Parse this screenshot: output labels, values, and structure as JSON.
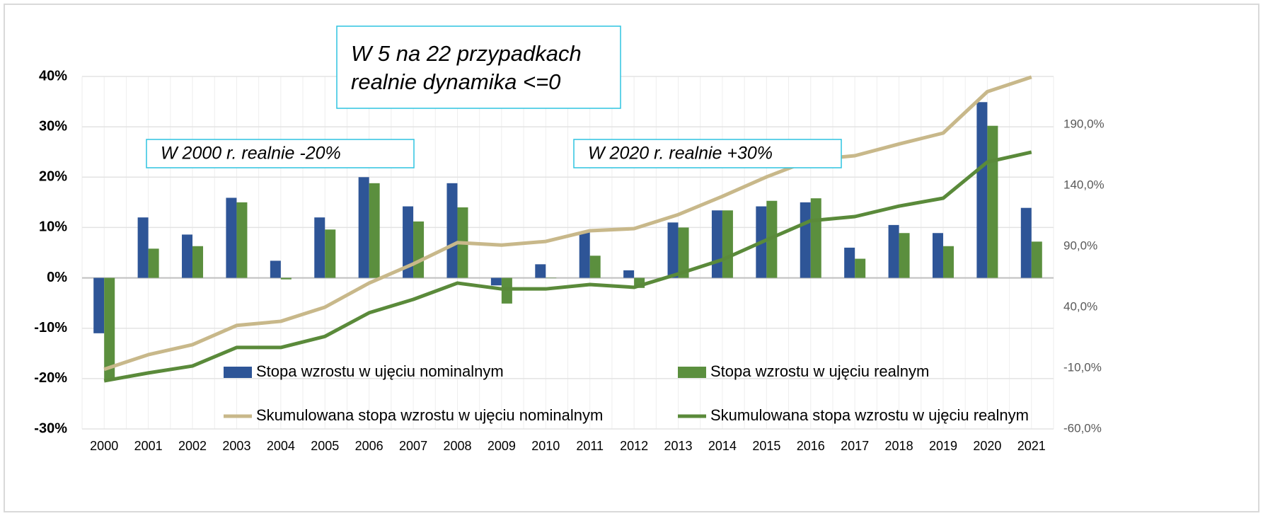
{
  "chart_data": {
    "type": "combo",
    "categories": [
      "2000",
      "2001",
      "2002",
      "2003",
      "2004",
      "2005",
      "2006",
      "2007",
      "2008",
      "2009",
      "2010",
      "2011",
      "2012",
      "2013",
      "2014",
      "2015",
      "2016",
      "2017",
      "2018",
      "2019",
      "2020",
      "2021"
    ],
    "series": [
      {
        "name": "Stopa wzrostu w ujęciu nominalnym",
        "type": "bar",
        "color": "#2e5597",
        "values": [
          -11,
          12,
          8.6,
          15.9,
          3.4,
          12,
          20,
          14.2,
          18.8,
          -1.5,
          2.7,
          9,
          1.5,
          11,
          13.4,
          14.2,
          15,
          6,
          10.5,
          8.9,
          34.9,
          13.9
        ]
      },
      {
        "name": "Stopa wzrostu w ujęciu realnym",
        "type": "bar",
        "color": "#5b8f3e",
        "values": [
          -20.4,
          5.8,
          6.3,
          15,
          -0.3,
          9.6,
          18.8,
          11.2,
          14,
          -5.1,
          0,
          4.4,
          -2,
          10,
          13.4,
          15.3,
          15.8,
          3.8,
          8.9,
          6.3,
          30.2,
          7.2
        ]
      },
      {
        "name": "Skumulowana stopa wzrostu w ujęciu nominalnym",
        "type": "line",
        "axis": "y2",
        "color": "#c8b88a",
        "values": [
          -11,
          1,
          9.2,
          25,
          28.4,
          40,
          59.8,
          75.5,
          93,
          91,
          94,
          102.8,
          104.5,
          116,
          131,
          147,
          161,
          164.4,
          174,
          183,
          217,
          229
        ]
      },
      {
        "name": "Skumulowana stopa wzrostu w ujęciu realnym",
        "type": "line",
        "axis": "y2",
        "color": "#5a8a3a",
        "values": [
          -20.5,
          -14,
          -8.3,
          6.9,
          6.9,
          16,
          35.4,
          46.4,
          59.8,
          55,
          55,
          58.6,
          56.3,
          67.3,
          79,
          95.2,
          111,
          114.4,
          123,
          129.5,
          159.2,
          167.3
        ]
      }
    ],
    "ylim": [
      -30,
      40
    ],
    "yticks": [
      {
        "value": -30,
        "label": "-30%"
      },
      {
        "value": -20,
        "label": "-20%"
      },
      {
        "value": -10,
        "label": "-10%"
      },
      {
        "value": 0,
        "label": "0%"
      },
      {
        "value": 10,
        "label": "10%"
      },
      {
        "value": 20,
        "label": "20%"
      },
      {
        "value": 30,
        "label": "30%"
      },
      {
        "value": 40,
        "label": "40%"
      }
    ],
    "y2lim": [
      -60,
      229.5
    ],
    "y2ticks": [
      {
        "value": -60,
        "label": "-60,0%"
      },
      {
        "value": -10,
        "label": "-10,0%"
      },
      {
        "value": 40,
        "label": "40,0%"
      },
      {
        "value": 90,
        "label": "90,0%"
      },
      {
        "value": 140,
        "label": "140,0%"
      },
      {
        "value": 190,
        "label": "190,0%"
      }
    ],
    "grid": true,
    "annotations": [
      {
        "lines": [
          "W 5 na 22 przypadkach",
          "realnie dynamika  <=0"
        ]
      },
      {
        "lines": [
          "W 2000 r. realnie -20%"
        ]
      },
      {
        "lines": [
          "W 2020 r. realnie +30%"
        ]
      }
    ]
  }
}
